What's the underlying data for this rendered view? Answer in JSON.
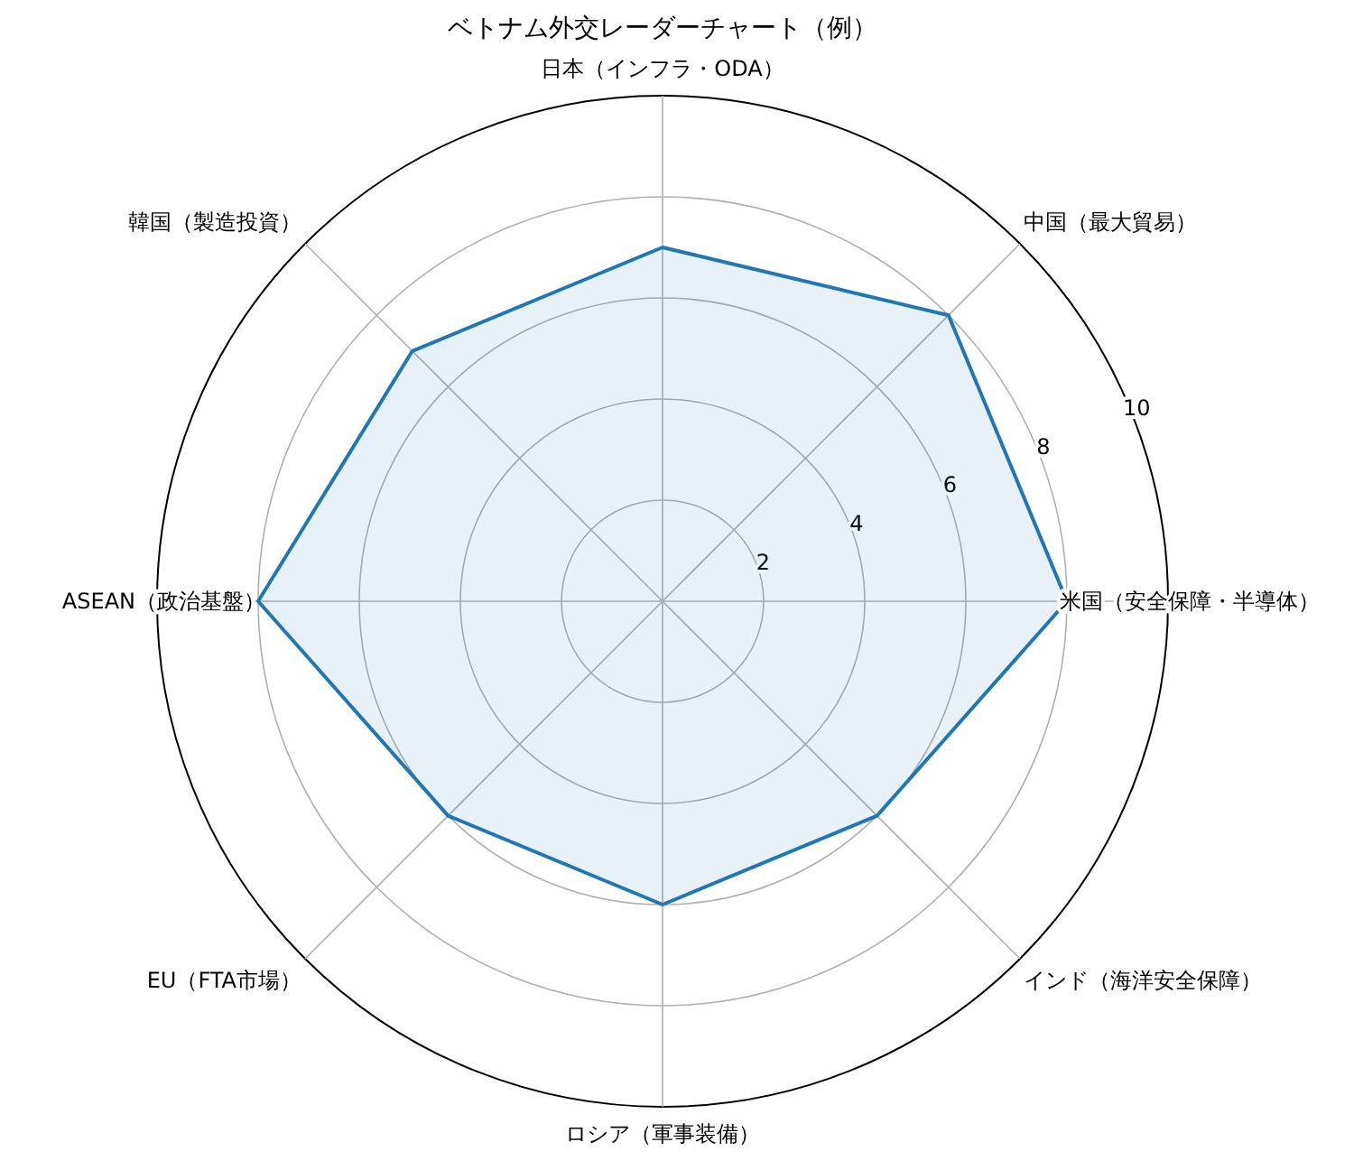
{
  "chart_data": {
    "type": "radar",
    "title": "ベトナム外交レーダーチャート（例）",
    "categories": [
      "日本（インフラ・ODA）",
      "中国（最大貿易）",
      "米国（安全保障・半導体）",
      "インド（海洋安全保障）",
      "ロシア（軍事装備）",
      "EU（FTA市場）",
      "ASEAN（政治基盤）",
      "韓国（製造投資）"
    ],
    "series": [
      {
        "color": "#1f77b4",
        "values": [
          7,
          8,
          8,
          6,
          6,
          6,
          8,
          7
        ]
      }
    ],
    "ylim": [
      0,
      10
    ],
    "yticks": [
      2,
      4,
      6,
      8,
      10
    ],
    "grid": true
  }
}
